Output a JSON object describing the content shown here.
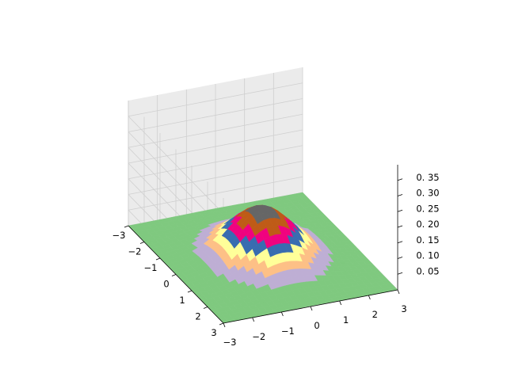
{
  "chart_data": {
    "type": "surface3d",
    "function": "z = exp(-(x^2 + y^2)/2) / (2*pi)",
    "x_range": [
      -3,
      3
    ],
    "y_range": [
      -3,
      3
    ],
    "grid_steps": 30,
    "zlim": [
      0.0,
      0.4
    ],
    "x_ticks": [
      "−3",
      "−2",
      "−1",
      "0",
      "1",
      "2",
      "3"
    ],
    "y_ticks": [
      "−3",
      "−2",
      "−1",
      "0",
      "1",
      "2",
      "3"
    ],
    "z_ticks": [
      "0. 05",
      "0. 10",
      "0. 15",
      "0. 20",
      "0. 25",
      "0. 30",
      "0. 35"
    ],
    "z_tick_values": [
      0.05,
      0.1,
      0.15,
      0.2,
      0.25,
      0.3,
      0.35
    ],
    "colormap": "Accent",
    "colors": [
      "#7fc97f",
      "#beaed4",
      "#fdc086",
      "#ffff99",
      "#386cb0",
      "#f0027f",
      "#bf5b17",
      "#666666"
    ],
    "pane_color": "#f2f2f2",
    "grid": true
  }
}
